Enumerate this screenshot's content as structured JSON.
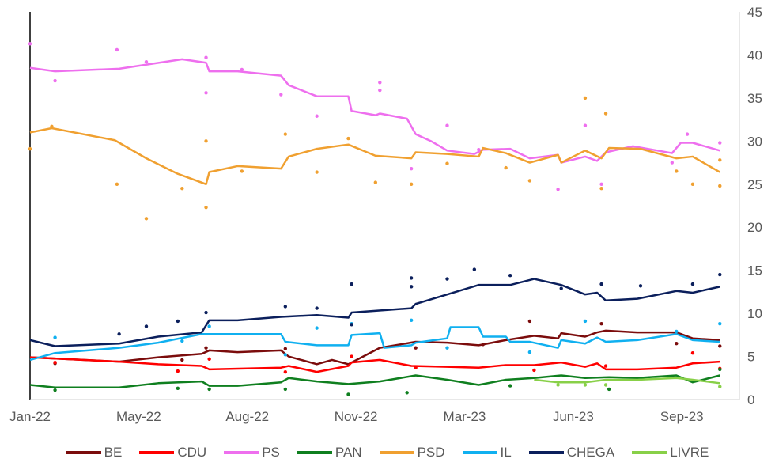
{
  "chart_data": {
    "type": "line",
    "title": "",
    "xlabel": "",
    "ylabel": "",
    "x_unit": "tick index (0 = Jan-22, 6 = Sep-23)",
    "x_ticks": [
      {
        "x": 0,
        "label": "Jan-22"
      },
      {
        "x": 1,
        "label": "May-22"
      },
      {
        "x": 2,
        "label": "Aug-22"
      },
      {
        "x": 3,
        "label": "Nov-22"
      },
      {
        "x": 4,
        "label": "Mar-23"
      },
      {
        "x": 5,
        "label": "Jun-23"
      },
      {
        "x": 6,
        "label": "Sep-23"
      }
    ],
    "xlim": [
      0,
      6.53
    ],
    "ylim": [
      0,
      45
    ],
    "y_ticks": [
      "0",
      "5",
      "10",
      "15",
      "20",
      "25",
      "30",
      "35",
      "40",
      "45"
    ],
    "y_axis_side": "right",
    "grid": false,
    "legend_position": "bottom",
    "series": [
      {
        "name": "BE",
        "color": "#7b0c0c",
        "line": [
          [
            0,
            4.9
          ],
          [
            0.82,
            4.4
          ],
          [
            1.18,
            4.9
          ],
          [
            1.58,
            5.3
          ],
          [
            1.65,
            5.7
          ],
          [
            1.91,
            5.5
          ],
          [
            2.31,
            5.7
          ],
          [
            2.38,
            5
          ],
          [
            2.64,
            4.1
          ],
          [
            2.78,
            4.6
          ],
          [
            2.93,
            4.1
          ],
          [
            3.22,
            6
          ],
          [
            3.55,
            6.7
          ],
          [
            3.84,
            6.6
          ],
          [
            4.13,
            6.3
          ],
          [
            4.38,
            6.9
          ],
          [
            4.64,
            7.4
          ],
          [
            4.86,
            7.1
          ],
          [
            4.89,
            7.7
          ],
          [
            5.11,
            7.3
          ],
          [
            5.22,
            7.8
          ],
          [
            5.3,
            8
          ],
          [
            5.59,
            7.8
          ],
          [
            5.95,
            7.8
          ],
          [
            6.1,
            7.1
          ],
          [
            6.35,
            6.9
          ]
        ],
        "points": [
          [
            0.23,
            4.2
          ],
          [
            1.4,
            4.6
          ],
          [
            1.62,
            6
          ],
          [
            2.35,
            5.9
          ],
          [
            3.55,
            6
          ],
          [
            4.17,
            6.4
          ],
          [
            4.6,
            9.1
          ],
          [
            5.26,
            8.8
          ],
          [
            5.95,
            6.5
          ],
          [
            6.35,
            6.2
          ]
        ]
      },
      {
        "name": "CDU",
        "color": "#ff0000",
        "line": [
          [
            0,
            4.9
          ],
          [
            0.82,
            4.4
          ],
          [
            1.18,
            4.1
          ],
          [
            1.58,
            3.9
          ],
          [
            1.65,
            3.5
          ],
          [
            2.31,
            3.7
          ],
          [
            2.38,
            3.9
          ],
          [
            2.64,
            3.2
          ],
          [
            2.93,
            3.9
          ],
          [
            2.96,
            4.3
          ],
          [
            3.22,
            4.6
          ],
          [
            3.51,
            3.9
          ],
          [
            3.84,
            3.8
          ],
          [
            4.13,
            3.7
          ],
          [
            4.38,
            4
          ],
          [
            4.64,
            4
          ],
          [
            4.89,
            4.3
          ],
          [
            5.11,
            3.8
          ],
          [
            5.22,
            4.2
          ],
          [
            5.3,
            3.5
          ],
          [
            5.59,
            3.5
          ],
          [
            5.95,
            3.7
          ],
          [
            6.1,
            4.2
          ],
          [
            6.35,
            4.4
          ]
        ],
        "points": [
          [
            0.23,
            4.3
          ],
          [
            1.36,
            3.3
          ],
          [
            1.65,
            4.7
          ],
          [
            2.35,
            3.2
          ],
          [
            2.96,
            5
          ],
          [
            3.55,
            3.7
          ],
          [
            4.64,
            3.4
          ],
          [
            5.3,
            3.9
          ],
          [
            6.1,
            5.4
          ],
          [
            6.35,
            3.6
          ]
        ]
      },
      {
        "name": "PS",
        "color": "#ee6fee",
        "line": [
          [
            0,
            38.5
          ],
          [
            0.23,
            38.1
          ],
          [
            0.82,
            38.4
          ],
          [
            1.4,
            39.5
          ],
          [
            1.62,
            39.1
          ],
          [
            1.65,
            38.1
          ],
          [
            1.91,
            38.1
          ],
          [
            2.31,
            37.6
          ],
          [
            2.38,
            36.5
          ],
          [
            2.64,
            35.2
          ],
          [
            2.93,
            35.2
          ],
          [
            2.96,
            33.5
          ],
          [
            3.18,
            33
          ],
          [
            3.22,
            33.2
          ],
          [
            3.47,
            32.6
          ],
          [
            3.55,
            30.8
          ],
          [
            3.69,
            30
          ],
          [
            3.84,
            28.9
          ],
          [
            4.09,
            28.5
          ],
          [
            4.17,
            29
          ],
          [
            4.42,
            29.1
          ],
          [
            4.6,
            28
          ],
          [
            4.86,
            28.4
          ],
          [
            4.89,
            27.5
          ],
          [
            5.11,
            28.2
          ],
          [
            5.22,
            27.7
          ],
          [
            5.3,
            28.7
          ],
          [
            5.55,
            29.4
          ],
          [
            5.91,
            28.6
          ],
          [
            5.99,
            29.8
          ],
          [
            6.1,
            29.8
          ],
          [
            6.35,
            28.9
          ]
        ],
        "points": [
          [
            0,
            41.3
          ],
          [
            0.23,
            37
          ],
          [
            0.8,
            40.6
          ],
          [
            1.07,
            39.2
          ],
          [
            1.62,
            39.7
          ],
          [
            1.62,
            35.6
          ],
          [
            1.95,
            38.3
          ],
          [
            2.31,
            35.4
          ],
          [
            2.64,
            32.9
          ],
          [
            3.22,
            36.8
          ],
          [
            3.22,
            35.9
          ],
          [
            3.51,
            26.8
          ],
          [
            3.84,
            31.8
          ],
          [
            4.13,
            29
          ],
          [
            4.86,
            24.4
          ],
          [
            5.11,
            31.8
          ],
          [
            5.26,
            25
          ],
          [
            5.91,
            27.5
          ],
          [
            6.05,
            30.8
          ],
          [
            6.35,
            29.8
          ]
        ]
      },
      {
        "name": "PAN",
        "color": "#0f7f1f",
        "line": [
          [
            0,
            1.7
          ],
          [
            0.23,
            1.4
          ],
          [
            0.82,
            1.4
          ],
          [
            1.18,
            1.9
          ],
          [
            1.58,
            2.1
          ],
          [
            1.65,
            1.6
          ],
          [
            1.91,
            1.6
          ],
          [
            2.31,
            2
          ],
          [
            2.38,
            2.5
          ],
          [
            2.64,
            2.1
          ],
          [
            2.93,
            1.8
          ],
          [
            3.22,
            2.1
          ],
          [
            3.55,
            2.8
          ],
          [
            3.84,
            2.3
          ],
          [
            4.13,
            1.7
          ],
          [
            4.38,
            2.3
          ],
          [
            4.64,
            2.5
          ],
          [
            4.89,
            2.8
          ],
          [
            5.11,
            2.5
          ],
          [
            5.33,
            2.6
          ],
          [
            5.59,
            2.5
          ],
          [
            5.95,
            2.8
          ],
          [
            6.1,
            2
          ],
          [
            6.35,
            2.8
          ]
        ],
        "points": [
          [
            0.23,
            1.1
          ],
          [
            1.36,
            1.3
          ],
          [
            1.65,
            1.2
          ],
          [
            2.35,
            1.2
          ],
          [
            2.93,
            0.6
          ],
          [
            3.47,
            0.8
          ],
          [
            4.42,
            1.6
          ],
          [
            5.33,
            1.2
          ],
          [
            6.35,
            3.5
          ]
        ]
      },
      {
        "name": "PSD",
        "color": "#f0a030",
        "line": [
          [
            0,
            31
          ],
          [
            0.2,
            31.5
          ],
          [
            0.78,
            30.1
          ],
          [
            1.07,
            28
          ],
          [
            1.36,
            26.2
          ],
          [
            1.62,
            25
          ],
          [
            1.65,
            26.4
          ],
          [
            1.91,
            27.1
          ],
          [
            2.31,
            26.8
          ],
          [
            2.38,
            28.2
          ],
          [
            2.64,
            29.1
          ],
          [
            2.93,
            29.6
          ],
          [
            3.18,
            28.3
          ],
          [
            3.51,
            28
          ],
          [
            3.55,
            28.7
          ],
          [
            3.84,
            28.5
          ],
          [
            4.13,
            28.2
          ],
          [
            4.17,
            29.2
          ],
          [
            4.38,
            28.6
          ],
          [
            4.6,
            27.5
          ],
          [
            4.86,
            28.4
          ],
          [
            4.89,
            27.5
          ],
          [
            5.11,
            28.9
          ],
          [
            5.26,
            28
          ],
          [
            5.33,
            29.2
          ],
          [
            5.62,
            29.1
          ],
          [
            5.95,
            28
          ],
          [
            6.1,
            28.2
          ],
          [
            6.35,
            26.4
          ]
        ],
        "points": [
          [
            0,
            29.1
          ],
          [
            0.2,
            31.7
          ],
          [
            0.8,
            25
          ],
          [
            1.07,
            21
          ],
          [
            1.4,
            24.5
          ],
          [
            1.62,
            22.3
          ],
          [
            1.62,
            30
          ],
          [
            1.95,
            26.5
          ],
          [
            2.35,
            30.8
          ],
          [
            2.64,
            26.4
          ],
          [
            2.93,
            30.3
          ],
          [
            3.18,
            25.2
          ],
          [
            3.51,
            25
          ],
          [
            3.84,
            27.4
          ],
          [
            4.38,
            26.9
          ],
          [
            4.6,
            25.4
          ],
          [
            5.11,
            35
          ],
          [
            5.26,
            24.5
          ],
          [
            5.3,
            33.2
          ],
          [
            5.95,
            26.5
          ],
          [
            6.1,
            25
          ],
          [
            6.35,
            24.8
          ],
          [
            6.35,
            27.8
          ]
        ]
      },
      {
        "name": "IL",
        "color": "#10b0f0",
        "line": [
          [
            0,
            4.6
          ],
          [
            0.23,
            5.4
          ],
          [
            0.82,
            6
          ],
          [
            1.18,
            6.6
          ],
          [
            1.58,
            7.6
          ],
          [
            1.65,
            7.6
          ],
          [
            2.31,
            7.6
          ],
          [
            2.35,
            6.7
          ],
          [
            2.64,
            6.3
          ],
          [
            2.93,
            6.3
          ],
          [
            2.96,
            7.5
          ],
          [
            3.22,
            7.7
          ],
          [
            3.26,
            6
          ],
          [
            3.51,
            6.3
          ],
          [
            3.55,
            6.6
          ],
          [
            3.84,
            7.1
          ],
          [
            3.87,
            8.4
          ],
          [
            4.13,
            8.4
          ],
          [
            4.17,
            7.3
          ],
          [
            4.38,
            7.3
          ],
          [
            4.42,
            6.7
          ],
          [
            4.6,
            6.7
          ],
          [
            4.86,
            6
          ],
          [
            4.89,
            6.9
          ],
          [
            5.11,
            6.5
          ],
          [
            5.22,
            7.2
          ],
          [
            5.3,
            6.7
          ],
          [
            5.59,
            6.9
          ],
          [
            5.95,
            7.6
          ],
          [
            6.1,
            6.9
          ],
          [
            6.35,
            6.7
          ]
        ],
        "points": [
          [
            0.23,
            7.2
          ],
          [
            1.4,
            6.8
          ],
          [
            1.65,
            8.5
          ],
          [
            2.35,
            5.2
          ],
          [
            2.64,
            8.3
          ],
          [
            2.96,
            8.8
          ],
          [
            3.51,
            9.2
          ],
          [
            3.84,
            6
          ],
          [
            4.6,
            5.5
          ],
          [
            5.11,
            9.1
          ],
          [
            5.95,
            7.9
          ],
          [
            6.35,
            8.8
          ]
        ]
      },
      {
        "name": "CHEGA",
        "color": "#0b1f5c",
        "line": [
          [
            0,
            6.9
          ],
          [
            0.23,
            6.2
          ],
          [
            0.82,
            6.5
          ],
          [
            1.18,
            7.3
          ],
          [
            1.58,
            7.8
          ],
          [
            1.65,
            9.2
          ],
          [
            1.91,
            9.2
          ],
          [
            2.31,
            9.6
          ],
          [
            2.64,
            9.8
          ],
          [
            2.93,
            9.5
          ],
          [
            2.96,
            10.1
          ],
          [
            3.51,
            10.6
          ],
          [
            3.55,
            11.1
          ],
          [
            3.84,
            12.2
          ],
          [
            4.13,
            13.3
          ],
          [
            4.42,
            13.3
          ],
          [
            4.64,
            14
          ],
          [
            4.89,
            13.3
          ],
          [
            5.11,
            12.2
          ],
          [
            5.22,
            12.4
          ],
          [
            5.3,
            11.5
          ],
          [
            5.59,
            11.7
          ],
          [
            5.95,
            12.6
          ],
          [
            6.1,
            12.4
          ],
          [
            6.35,
            13.1
          ]
        ],
        "points": [
          [
            0.82,
            7.6
          ],
          [
            1.07,
            8.5
          ],
          [
            1.36,
            9.1
          ],
          [
            1.62,
            10.1
          ],
          [
            2.35,
            10.8
          ],
          [
            2.64,
            10.6
          ],
          [
            2.96,
            13.4
          ],
          [
            2.96,
            8.7
          ],
          [
            3.51,
            13.1
          ],
          [
            3.51,
            14.1
          ],
          [
            3.84,
            14
          ],
          [
            4.09,
            15.1
          ],
          [
            4.42,
            14.4
          ],
          [
            4.89,
            12.9
          ],
          [
            5.26,
            13.4
          ],
          [
            5.62,
            13.2
          ],
          [
            6.1,
            13.4
          ],
          [
            6.35,
            14.5
          ]
        ]
      },
      {
        "name": "LIVRE",
        "color": "#88d048",
        "line": [
          [
            4.64,
            2.3
          ],
          [
            4.86,
            2
          ],
          [
            5.11,
            2
          ],
          [
            5.3,
            2.3
          ],
          [
            5.59,
            2.3
          ],
          [
            5.95,
            2.5
          ],
          [
            6.1,
            2.3
          ],
          [
            6.35,
            1.9
          ]
        ],
        "points": [
          [
            4.86,
            1.7
          ],
          [
            5.11,
            1.7
          ],
          [
            5.3,
            1.7
          ],
          [
            6.35,
            1.5
          ]
        ]
      }
    ]
  }
}
